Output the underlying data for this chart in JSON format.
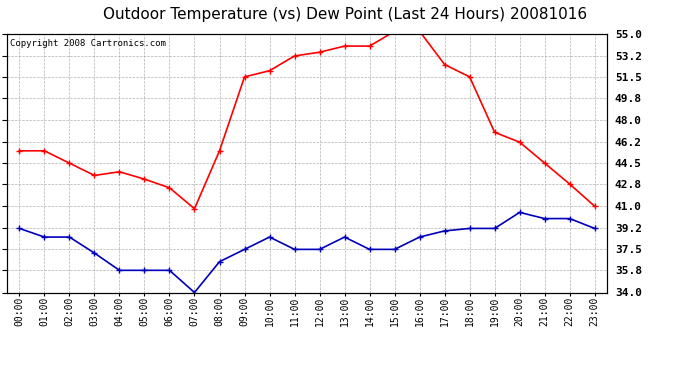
{
  "title": "Outdoor Temperature (vs) Dew Point (Last 24 Hours) 20081016",
  "copyright_text": "Copyright 2008 Cartronics.com",
  "hours": [
    "00:00",
    "01:00",
    "02:00",
    "03:00",
    "04:00",
    "05:00",
    "06:00",
    "07:00",
    "08:00",
    "09:00",
    "10:00",
    "11:00",
    "12:00",
    "13:00",
    "14:00",
    "15:00",
    "16:00",
    "17:00",
    "18:00",
    "19:00",
    "20:00",
    "21:00",
    "22:00",
    "23:00"
  ],
  "temp": [
    45.5,
    45.5,
    44.5,
    43.5,
    43.8,
    43.2,
    42.5,
    40.8,
    45.5,
    51.5,
    52.0,
    53.2,
    53.5,
    54.0,
    54.0,
    55.2,
    55.2,
    52.5,
    51.5,
    47.0,
    46.2,
    44.5,
    42.8,
    41.0
  ],
  "dewpoint": [
    39.2,
    38.5,
    38.5,
    37.2,
    35.8,
    35.8,
    35.8,
    34.0,
    36.5,
    37.5,
    38.5,
    37.5,
    37.5,
    38.5,
    37.5,
    37.5,
    38.5,
    39.0,
    39.2,
    39.2,
    40.5,
    40.0,
    40.0,
    39.2
  ],
  "temp_color": "#ff0000",
  "dewpoint_color": "#0000bb",
  "background_color": "#ffffff",
  "plot_bg_color": "#ffffff",
  "grid_color": "#aaaaaa",
  "ylim": [
    34.0,
    55.0
  ],
  "yticks": [
    34.0,
    35.8,
    37.5,
    39.2,
    41.0,
    42.8,
    44.5,
    46.2,
    48.0,
    49.8,
    51.5,
    53.2,
    55.0
  ],
  "title_fontsize": 11,
  "copyright_fontsize": 6.5,
  "tick_fontsize": 7,
  "ytick_fontsize": 8
}
